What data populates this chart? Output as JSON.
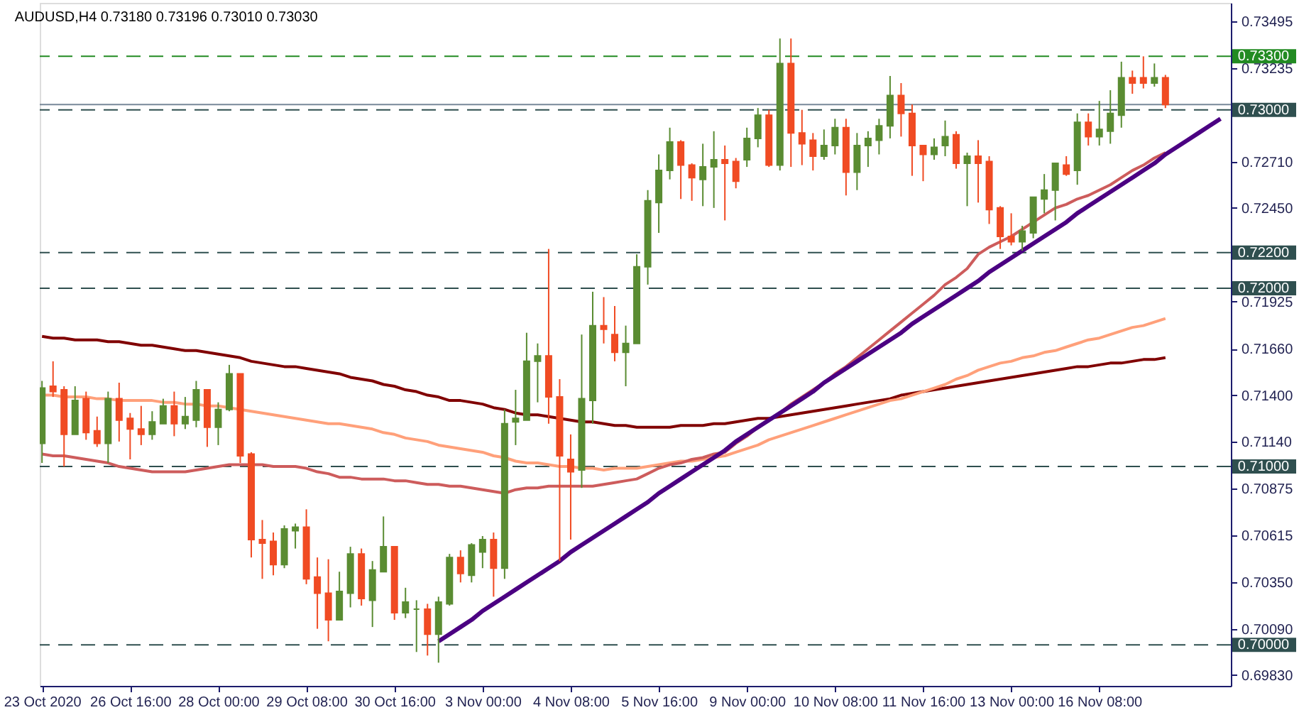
{
  "chart_data": {
    "type": "candlestick",
    "title": "AUDUSD,H4 0.73180 0.73196 0.73010 0.73030",
    "categories": [
      "23 Oct 2020",
      null,
      null,
      null,
      null,
      null,
      null,
      null,
      "26 Oct 16:00",
      null,
      null,
      null,
      null,
      null,
      null,
      null,
      "28 Oct 00:00",
      null,
      null,
      null,
      null,
      null,
      null,
      null,
      "29 Oct 08:00",
      null,
      null,
      null,
      null,
      null,
      null,
      null,
      "30 Oct 16:00",
      null,
      null,
      null,
      null,
      null,
      null,
      null,
      "3 Nov 00:00",
      null,
      null,
      null,
      null,
      null,
      null,
      null,
      "4 Nov 08:00",
      null,
      null,
      null,
      null,
      null,
      null,
      null,
      "5 Nov 16:00",
      null,
      null,
      null,
      null,
      null,
      null,
      null,
      "9 Nov 00:00",
      null,
      null,
      null,
      null,
      null,
      null,
      null,
      "10 Nov 08:00",
      null,
      null,
      null,
      null,
      null,
      null,
      null,
      "11 Nov 16:00",
      null,
      null,
      null,
      null,
      null,
      null,
      null,
      "13 Nov 00:00",
      null,
      null,
      null,
      null,
      null,
      null,
      null,
      "16 Nov 08:00",
      null,
      null,
      null,
      null,
      null,
      null,
      null,
      null,
      null,
      null,
      null
    ],
    "ohlc": [
      [
        0.7113,
        0.7148,
        0.7102,
        0.7144
      ],
      [
        0.7145,
        0.7159,
        0.7139,
        0.7142
      ],
      [
        0.7143,
        0.7145,
        0.71,
        0.7118
      ],
      [
        0.7118,
        0.7145,
        0.7118,
        0.7137
      ],
      [
        0.7138,
        0.7142,
        0.7115,
        0.7119
      ],
      [
        0.712,
        0.7128,
        0.7111,
        0.7113
      ],
      [
        0.7113,
        0.7142,
        0.7102,
        0.7138
      ],
      [
        0.7138,
        0.7147,
        0.7114,
        0.7126
      ],
      [
        0.7127,
        0.713,
        0.7104,
        0.7121
      ],
      [
        0.7121,
        0.7134,
        0.7112,
        0.7118
      ],
      [
        0.7118,
        0.7131,
        0.7115,
        0.7125
      ],
      [
        0.7124,
        0.7138,
        0.7124,
        0.7134
      ],
      [
        0.7134,
        0.7142,
        0.7117,
        0.7124
      ],
      [
        0.7124,
        0.7139,
        0.7121,
        0.7128
      ],
      [
        0.7126,
        0.7148,
        0.7122,
        0.7143
      ],
      [
        0.7143,
        0.7143,
        0.7111,
        0.7122
      ],
      [
        0.7122,
        0.7136,
        0.7112,
        0.7132
      ],
      [
        0.7132,
        0.7157,
        0.7131,
        0.7152
      ],
      [
        0.7152,
        0.7152,
        0.7102,
        0.7106
      ],
      [
        0.7107,
        0.7108,
        0.7049,
        0.7059
      ],
      [
        0.7059,
        0.707,
        0.7037,
        0.7057
      ],
      [
        0.7058,
        0.7063,
        0.7039,
        0.7045
      ],
      [
        0.7045,
        0.7067,
        0.7043,
        0.7065
      ],
      [
        0.7064,
        0.7068,
        0.7054,
        0.7066
      ],
      [
        0.7066,
        0.7076,
        0.7034,
        0.7037
      ],
      [
        0.7038,
        0.7049,
        0.7009,
        0.7029
      ],
      [
        0.7029,
        0.7048,
        0.7002,
        0.7014
      ],
      [
        0.7014,
        0.7041,
        0.7014,
        0.703
      ],
      [
        0.7029,
        0.7055,
        0.7021,
        0.7051
      ],
      [
        0.7051,
        0.7054,
        0.7022,
        0.7026
      ],
      [
        0.7025,
        0.7047,
        0.701,
        0.7042
      ],
      [
        0.7041,
        0.7072,
        0.7041,
        0.7055
      ],
      [
        0.7055,
        0.7055,
        0.7014,
        0.7018
      ],
      [
        0.7018,
        0.7032,
        0.7015,
        0.7024
      ],
      [
        0.702,
        0.7025,
        0.6996,
        0.702
      ],
      [
        0.702,
        0.7023,
        0.6994,
        0.7006
      ],
      [
        0.7006,
        0.7027,
        0.699,
        0.7024
      ],
      [
        0.7023,
        0.7051,
        0.7022,
        0.7049
      ],
      [
        0.7049,
        0.7053,
        0.7035,
        0.704
      ],
      [
        0.7039,
        0.7057,
        0.7035,
        0.7056
      ],
      [
        0.7052,
        0.7061,
        0.7043,
        0.7059
      ],
      [
        0.7059,
        0.7063,
        0.7027,
        0.7043
      ],
      [
        0.7043,
        0.7132,
        0.7037,
        0.7124
      ],
      [
        0.7125,
        0.7143,
        0.7112,
        0.7127
      ],
      [
        0.7126,
        0.7175,
        0.7126,
        0.7159
      ],
      [
        0.7159,
        0.7169,
        0.7136,
        0.7162
      ],
      [
        0.7162,
        0.7222,
        0.7124,
        0.7139
      ],
      [
        0.7139,
        0.7149,
        0.7047,
        0.7106
      ],
      [
        0.7104,
        0.7118,
        0.7059,
        0.7097
      ],
      [
        0.7098,
        0.7174,
        0.7088,
        0.7138
      ],
      [
        0.7137,
        0.7198,
        0.7124,
        0.7179
      ],
      [
        0.7179,
        0.7195,
        0.7169,
        0.7177
      ],
      [
        0.7174,
        0.719,
        0.7159,
        0.7164
      ],
      [
        0.7164,
        0.7179,
        0.7145,
        0.7169
      ],
      [
        0.7169,
        0.7219,
        0.7169,
        0.7212
      ],
      [
        0.7212,
        0.7255,
        0.7202,
        0.7249
      ],
      [
        0.7248,
        0.7275,
        0.7231,
        0.7266
      ],
      [
        0.7266,
        0.729,
        0.7261,
        0.7282
      ],
      [
        0.7282,
        0.7283,
        0.725,
        0.7269
      ],
      [
        0.7269,
        0.727,
        0.7249,
        0.7262
      ],
      [
        0.7261,
        0.7281,
        0.7246,
        0.7268
      ],
      [
        0.7268,
        0.7288,
        0.7245,
        0.7272
      ],
      [
        0.7272,
        0.728,
        0.7238,
        0.727
      ],
      [
        0.7271,
        0.7273,
        0.7256,
        0.726
      ],
      [
        0.7272,
        0.729,
        0.7268,
        0.7284
      ],
      [
        0.7284,
        0.7301,
        0.7279,
        0.7297
      ],
      [
        0.7297,
        0.73,
        0.7268,
        0.7269
      ],
      [
        0.7269,
        0.734,
        0.7266,
        0.7326
      ],
      [
        0.7326,
        0.734,
        0.7268,
        0.7287
      ],
      [
        0.7287,
        0.73,
        0.7269,
        0.7281
      ],
      [
        0.7283,
        0.7287,
        0.7266,
        0.7274
      ],
      [
        0.7274,
        0.7289,
        0.7272,
        0.728
      ],
      [
        0.728,
        0.7295,
        0.7275,
        0.729
      ],
      [
        0.729,
        0.7295,
        0.7252,
        0.7265
      ],
      [
        0.7265,
        0.7287,
        0.7255,
        0.728
      ],
      [
        0.728,
        0.7288,
        0.7268,
        0.7284
      ],
      [
        0.7283,
        0.7295,
        0.7275,
        0.7291
      ],
      [
        0.7291,
        0.7319,
        0.7284,
        0.7308
      ],
      [
        0.7308,
        0.7315,
        0.7285,
        0.7298
      ],
      [
        0.7298,
        0.7303,
        0.7263,
        0.728
      ],
      [
        0.728,
        0.728,
        0.726,
        0.7275
      ],
      [
        0.7275,
        0.7284,
        0.7272,
        0.7279
      ],
      [
        0.728,
        0.7294,
        0.7274,
        0.7285
      ],
      [
        0.7286,
        0.7288,
        0.7267,
        0.727
      ],
      [
        0.727,
        0.7276,
        0.7246,
        0.7274
      ],
      [
        0.7274,
        0.7283,
        0.7248,
        0.727
      ],
      [
        0.7271,
        0.7274,
        0.7236,
        0.7244
      ],
      [
        0.7245,
        0.7246,
        0.7222,
        0.7229
      ],
      [
        0.7229,
        0.7242,
        0.7224,
        0.7226
      ],
      [
        0.7226,
        0.7235,
        0.7221,
        0.7232
      ],
      [
        0.7231,
        0.7251,
        0.7228,
        0.7251
      ],
      [
        0.725,
        0.7264,
        0.7242,
        0.7255
      ],
      [
        0.7255,
        0.727,
        0.7238,
        0.727
      ],
      [
        0.7269,
        0.7274,
        0.7263,
        0.7264
      ],
      [
        0.7266,
        0.7298,
        0.7258,
        0.7293
      ],
      [
        0.7293,
        0.7298,
        0.728,
        0.7285
      ],
      [
        0.7285,
        0.7305,
        0.728,
        0.7289
      ],
      [
        0.7288,
        0.7311,
        0.7281,
        0.7298
      ],
      [
        0.7297,
        0.7327,
        0.729,
        0.7318
      ],
      [
        0.7318,
        0.7322,
        0.7309,
        0.7315
      ],
      [
        0.7318,
        0.733,
        0.7312,
        0.7315
      ],
      [
        0.7315,
        0.7326,
        0.7313,
        0.7318
      ],
      [
        0.7318,
        0.73196,
        0.7301,
        0.7303
      ],
      null,
      null,
      null,
      null,
      null
    ],
    "colors": [
      "#5a8c32",
      "#f04b23",
      "#f04b23",
      "#5a8c32",
      "#f04b23",
      "#f04b23",
      "#5a8c32",
      "#f04b23",
      "#f04b23",
      "#f04b23",
      "#5a8c32",
      "#5a8c32",
      "#f04b23",
      "#5a8c32",
      "#5a8c32",
      "#f04b23",
      "#5a8c32",
      "#5a8c32",
      "#f04b23",
      "#f04b23",
      "#f04b23",
      "#f04b23",
      "#5a8c32",
      "#5a8c32",
      "#f04b23",
      "#f04b23",
      "#f04b23",
      "#5a8c32",
      "#5a8c32",
      "#f04b23",
      "#5a8c32",
      "#5a8c32",
      "#f04b23",
      "#5a8c32",
      "#5a8c32",
      "#f04b23",
      "#5a8c32",
      "#5a8c32",
      "#f04b23",
      "#5a8c32",
      "#5a8c32",
      "#f04b23",
      "#5a8c32",
      "#5a8c32",
      "#5a8c32",
      "#5a8c32",
      "#f04b23",
      "#f04b23",
      "#f04b23",
      "#5a8c32",
      "#5a8c32",
      "#f04b23",
      "#f04b23",
      "#5a8c32",
      "#5a8c32",
      "#5a8c32",
      "#5a8c32",
      "#5a8c32",
      "#f04b23",
      "#f04b23",
      "#5a8c32",
      "#5a8c32",
      "#f04b23",
      "#f04b23",
      "#5a8c32",
      "#5a8c32",
      "#f04b23",
      "#5a8c32",
      "#f04b23",
      "#f04b23",
      "#f04b23",
      "#5a8c32",
      "#5a8c32",
      "#f04b23",
      "#5a8c32",
      "#5a8c32",
      "#5a8c32",
      "#5a8c32",
      "#f04b23",
      "#f04b23",
      "#f04b23",
      "#5a8c32",
      "#5a8c32",
      "#f04b23",
      "#5a8c32",
      "#f04b23",
      "#f04b23",
      "#f04b23",
      "#f04b23",
      "#5a8c32",
      "#5a8c32",
      "#5a8c32",
      "#5a8c32",
      "#f04b23",
      "#5a8c32",
      "#f04b23",
      "#5a8c32",
      "#5a8c32",
      "#5a8c32",
      "#f04b23",
      "#f04b23",
      "#5a8c32",
      "#f04b23",
      null,
      null,
      null,
      null,
      null
    ],
    "ylim": [
      0.6977,
      0.736
    ],
    "yticks": [
      {
        "value": 0.73495,
        "label": "0.73495"
      },
      {
        "value": 0.73235,
        "label": "0.73235"
      },
      {
        "value": 0.7271,
        "label": "0.72710"
      },
      {
        "value": 0.7245,
        "label": "0.72450"
      },
      {
        "value": 0.71925,
        "label": "0.71925"
      },
      {
        "value": 0.7166,
        "label": "0.71660"
      },
      {
        "value": 0.714,
        "label": "0.71400"
      },
      {
        "value": 0.7114,
        "label": "0.71140"
      },
      {
        "value": 0.70875,
        "label": "0.70875"
      },
      {
        "value": 0.70615,
        "label": "0.70615"
      },
      {
        "value": 0.7035,
        "label": "0.70350"
      },
      {
        "value": 0.7009,
        "label": "0.70090"
      },
      {
        "value": 0.6983,
        "label": "0.69830"
      }
    ],
    "series": [
      {
        "type": "line",
        "color": "#800000",
        "values": [
          0.7173,
          0.7172,
          0.7172,
          0.7171,
          0.7171,
          0.7171,
          0.717,
          0.717,
          0.7169,
          0.7168,
          0.7168,
          0.7167,
          0.7166,
          0.7165,
          0.7165,
          0.7164,
          0.7163,
          0.7162,
          0.7161,
          0.7159,
          0.7158,
          0.7157,
          0.7156,
          0.7156,
          0.7155,
          0.7154,
          0.7153,
          0.7152,
          0.715,
          0.7149,
          0.7148,
          0.7146,
          0.7145,
          0.7143,
          0.7142,
          0.714,
          0.7139,
          0.7137,
          0.7137,
          0.7136,
          0.7135,
          0.7133,
          0.7132,
          0.713,
          0.7129,
          0.7129,
          0.7128,
          0.7127,
          0.7126,
          0.7125,
          0.7125,
          0.7124,
          0.7123,
          0.7123,
          0.7122,
          0.7122,
          0.7122,
          0.7122,
          0.7123,
          0.7123,
          0.7123,
          0.7124,
          0.7124,
          0.7125,
          0.7126,
          0.7127,
          0.7127,
          0.7128,
          0.7129,
          0.713,
          0.7131,
          0.7132,
          0.7133,
          0.7134,
          0.7135,
          0.7136,
          0.7137,
          0.7138,
          0.714,
          0.7141,
          0.7142,
          0.7143,
          0.7144,
          0.7145,
          0.7146,
          0.7147,
          0.7148,
          0.7149,
          0.715,
          0.7151,
          0.7152,
          0.7153,
          0.7154,
          0.7155,
          0.7156,
          0.7156,
          0.7157,
          0.7158,
          0.7158,
          0.7159,
          0.716,
          0.716,
          0.7161,
          null,
          null,
          null,
          null,
          null
        ]
      },
      {
        "type": "line",
        "color": "#ffa07a",
        "values": [
          0.714,
          0.714,
          0.7139,
          0.7139,
          0.7139,
          0.7138,
          0.7138,
          0.7137,
          0.7137,
          0.7137,
          0.7137,
          0.7136,
          0.7136,
          0.7135,
          0.7135,
          0.7134,
          0.7134,
          0.7133,
          0.7132,
          0.7131,
          0.713,
          0.7129,
          0.7128,
          0.7127,
          0.7126,
          0.7125,
          0.7124,
          0.7124,
          0.7123,
          0.7122,
          0.7121,
          0.7119,
          0.7118,
          0.7116,
          0.7115,
          0.7114,
          0.7112,
          0.7111,
          0.711,
          0.7109,
          0.7108,
          0.7106,
          0.7105,
          0.7103,
          0.7102,
          0.7102,
          0.7101,
          0.71,
          0.71,
          0.7099,
          0.7099,
          0.7098,
          0.7099,
          0.7099,
          0.7099,
          0.71,
          0.7101,
          0.7102,
          0.7103,
          0.7103,
          0.7104,
          0.7105,
          0.7106,
          0.7108,
          0.711,
          0.7112,
          0.7115,
          0.7117,
          0.7119,
          0.7121,
          0.7123,
          0.7125,
          0.7127,
          0.7129,
          0.7131,
          0.7133,
          0.7135,
          0.7137,
          0.7138,
          0.714,
          0.7142,
          0.7144,
          0.7146,
          0.7149,
          0.7151,
          0.7154,
          0.7156,
          0.7158,
          0.7159,
          0.7161,
          0.7162,
          0.7164,
          0.7165,
          0.7167,
          0.7169,
          0.7171,
          0.7172,
          0.7174,
          0.7176,
          0.7178,
          0.7179,
          0.7181,
          0.7183,
          null,
          null,
          null,
          null,
          null
        ]
      },
      {
        "type": "line",
        "color": "#cd5c5c",
        "values": [
          0.7107,
          0.7106,
          0.7106,
          0.7105,
          0.7104,
          0.7103,
          0.7102,
          0.71,
          0.7099,
          0.7098,
          0.7097,
          0.7097,
          0.7097,
          0.7097,
          0.7098,
          0.7099,
          0.71,
          0.7101,
          0.7101,
          0.7101,
          0.7101,
          0.71,
          0.71,
          0.71,
          0.7099,
          0.7097,
          0.7096,
          0.7094,
          0.7094,
          0.7093,
          0.7093,
          0.7093,
          0.7092,
          0.7092,
          0.7091,
          0.709,
          0.709,
          0.7089,
          0.7089,
          0.7088,
          0.7087,
          0.7086,
          0.7085,
          0.7087,
          0.7088,
          0.7088,
          0.7089,
          0.7089,
          0.7089,
          0.7089,
          0.7089,
          0.709,
          0.7091,
          0.7092,
          0.7093,
          0.7096,
          0.7099,
          0.7101,
          0.7102,
          0.7104,
          0.7105,
          0.7107,
          0.7108,
          0.7113,
          0.7117,
          0.7122,
          0.7126,
          0.713,
          0.7135,
          0.7139,
          0.7143,
          0.7147,
          0.7152,
          0.7156,
          0.7161,
          0.7166,
          0.7171,
          0.7176,
          0.7181,
          0.7186,
          0.7191,
          0.7196,
          0.7202,
          0.7206,
          0.7211,
          0.7219,
          0.7223,
          0.7226,
          0.7229,
          0.7233,
          0.7237,
          0.7241,
          0.7245,
          0.7247,
          0.725,
          0.7252,
          0.7255,
          0.7258,
          0.7262,
          0.7266,
          0.7269,
          0.7273,
          0.7276,
          null,
          null,
          null,
          null,
          null
        ]
      },
      {
        "type": "line",
        "color": "#4b0082",
        "values": [
          null,
          null,
          null,
          null,
          null,
          null,
          null,
          null,
          null,
          null,
          null,
          null,
          null,
          null,
          null,
          null,
          null,
          null,
          null,
          null,
          null,
          null,
          null,
          null,
          null,
          null,
          null,
          null,
          null,
          null,
          null,
          null,
          null,
          null,
          null,
          null,
          0.7002,
          0.7006,
          0.701,
          0.7014,
          0.7019,
          0.7023,
          0.7027,
          0.7031,
          0.7035,
          0.7039,
          0.7043,
          0.7047,
          0.7052,
          0.7056,
          0.706,
          0.7064,
          0.7068,
          0.7072,
          0.7076,
          0.708,
          0.7085,
          0.7089,
          0.7093,
          0.7097,
          0.7101,
          0.7105,
          0.7109,
          0.7114,
          0.7118,
          0.7122,
          0.7126,
          0.713,
          0.7134,
          0.7138,
          0.7142,
          0.7147,
          0.7151,
          0.7155,
          0.7159,
          0.7163,
          0.7167,
          0.7171,
          0.7175,
          0.718,
          0.7184,
          0.7188,
          0.7192,
          0.7196,
          0.72,
          0.7204,
          0.7209,
          0.7213,
          0.7217,
          0.7221,
          0.7225,
          0.7229,
          0.7233,
          0.7237,
          0.7242,
          0.7246,
          0.725,
          0.7254,
          0.7258,
          0.7262,
          0.7266,
          0.727,
          0.7275,
          0.7279,
          0.7283,
          0.7287,
          0.7291,
          0.7295
        ]
      }
    ],
    "ref_lines": [
      {
        "axis": "y",
        "value": 0.733,
        "label": "0.73300",
        "color": "#228b22",
        "line_style": "dashed"
      },
      {
        "axis": "y",
        "value": 0.7303,
        "label": null,
        "color": "#778899",
        "line_style": "solid"
      },
      {
        "axis": "y",
        "value": 0.73,
        "label": "0.73000",
        "color": "#2f4f4f",
        "line_style": "dashed"
      },
      {
        "axis": "y",
        "value": 0.722,
        "label": "0.72200",
        "color": "#2f4f4f",
        "line_style": "dashed"
      },
      {
        "axis": "y",
        "value": 0.72,
        "label": "0.72000",
        "color": "#2f4f4f",
        "line_style": "dashed"
      },
      {
        "axis": "y",
        "value": 0.71,
        "label": "0.71000",
        "color": "#2f4f4f",
        "line_style": "dashed"
      },
      {
        "axis": "y",
        "value": 0.7,
        "label": "0.70000",
        "color": "#2f4f4f",
        "line_style": "dashed"
      }
    ]
  }
}
